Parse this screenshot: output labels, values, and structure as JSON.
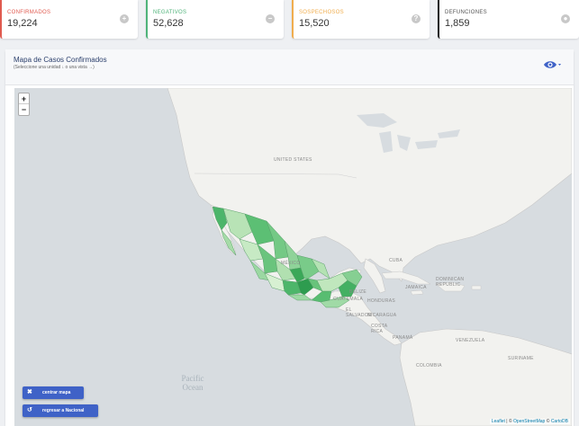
{
  "stats": [
    {
      "label": "CONFIRMADOS",
      "value": "19,224",
      "icon": "plus-circle-icon"
    },
    {
      "label": "NEGATIVOS",
      "value": "52,628",
      "icon": "minus-circle-icon"
    },
    {
      "label": "SOSPECHOSOS",
      "value": "15,520",
      "icon": "question-circle-icon"
    },
    {
      "label": "DEFUNCIONES",
      "value": "1,859",
      "icon": "person-icon"
    }
  ],
  "panel": {
    "title": "Mapa de Casos Confirmados",
    "subtitle": "(Seleccione una unidad ↓ o una vista →)"
  },
  "map": {
    "zoom_in": "+",
    "zoom_out": "−",
    "labels": {
      "us": "UNITED STATES",
      "mexico": "MÉXICO",
      "cuba": "CUBA",
      "jamaica": "JAMAICA",
      "dominican": "DOMINICAN REPUBLIC",
      "belize": "BELIZE",
      "guatemala": "GUATEMALA",
      "honduras": "HONDURAS",
      "el_salvador": "EL SALVADOR",
      "nicaragua": "NICARAGUA",
      "costa_rica": "COSTA RICA",
      "panama": "PANAMÁ",
      "venezuela": "VENEZUELA",
      "colombia": "COLOMBIA",
      "suriname": "SURINAME",
      "pacific": "Pacific",
      "ocean": "Ocean"
    },
    "buttons": {
      "center": "centrar mapa",
      "national": "regresar a Nacional"
    },
    "attribution": {
      "leaflet": "Leaflet",
      "sep1": " | © ",
      "osm": "OpenStreetMap",
      "sep2": " © ",
      "carto": "CartoDB"
    }
  }
}
